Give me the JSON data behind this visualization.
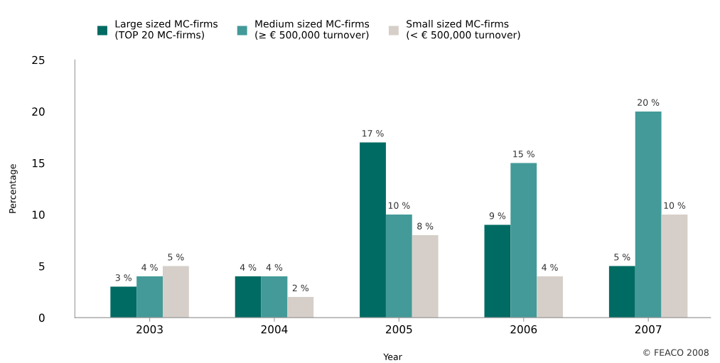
{
  "chart_data": {
    "type": "bar",
    "xlabel": "Year",
    "ylabel": "Percentage",
    "categories": [
      "2003",
      "2004",
      "2005",
      "2006",
      "2007"
    ],
    "series": [
      {
        "name": "Large sized MC-firms\n(TOP 20 MC-firms)",
        "color": "#006b63",
        "values": [
          3,
          4,
          17,
          9,
          5
        ],
        "value_labels": [
          "3 %",
          "4 %",
          "17 %",
          "9 %",
          "5 %"
        ]
      },
      {
        "name": "Medium sized MC-firms\n(≥ € 500,000 turnover)",
        "color": "#439a98",
        "values": [
          4,
          4,
          10,
          15,
          20
        ],
        "value_labels": [
          "4 %",
          "4 %",
          "10 %",
          "15 %",
          "20 %"
        ]
      },
      {
        "name": "Small sized MC-firms\n(< € 500,000 turnover)",
        "color": "#d6cfc9",
        "values": [
          5,
          2,
          8,
          4,
          10
        ],
        "value_labels": [
          "5 %",
          "2 %",
          "8 %",
          "4 %",
          "10 %"
        ]
      }
    ],
    "ylim": [
      0,
      25
    ],
    "yticks": [
      0,
      5,
      10,
      15,
      20,
      25
    ],
    "grid": false,
    "legend": "top left",
    "annotations": [
      "© FEACO 2008"
    ]
  }
}
